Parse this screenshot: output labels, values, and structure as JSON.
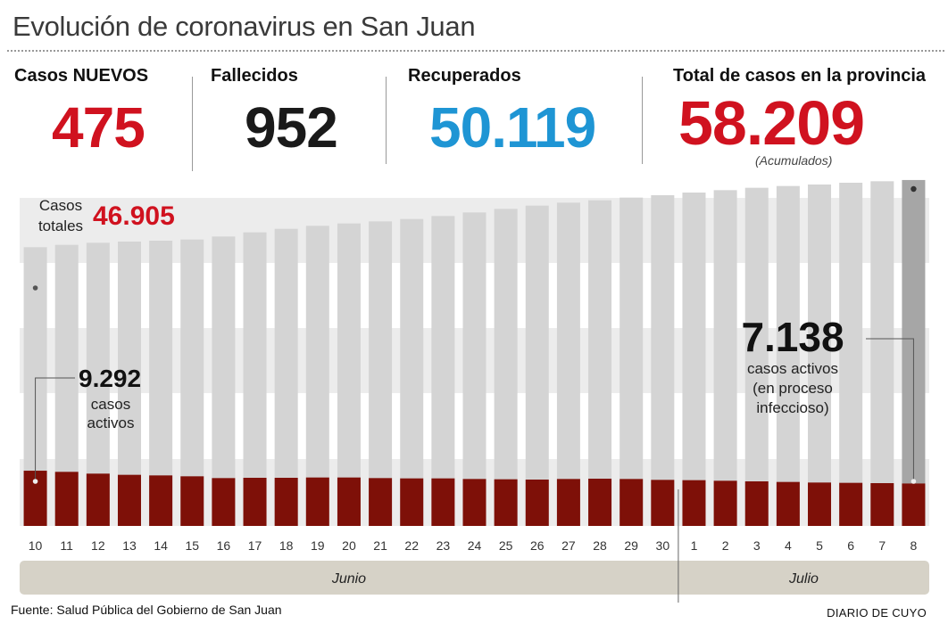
{
  "header": {
    "title": "Evolución de coronavirus en San Juan"
  },
  "stats": [
    {
      "key": "nuevos",
      "label": "Casos NUEVOS",
      "value": "475",
      "color": "#d0121f"
    },
    {
      "key": "fallecidos",
      "label": "Fallecidos",
      "value": "952",
      "color": "#1a1a1a"
    },
    {
      "key": "recuperados",
      "label": "Recuperados",
      "value": "50.119",
      "color": "#1e95d4"
    },
    {
      "key": "total",
      "label": "Total de casos en la provincia",
      "value": "58.209",
      "color": "#d0121f",
      "note": "(Acumulados)"
    }
  ],
  "annotations": {
    "casos_totales_label_1": "Casos",
    "casos_totales_label_2": "totales",
    "casos_totales_value": "46.905",
    "activos_start_value": "9.292",
    "activos_start_label_1": "casos",
    "activos_start_label_2": "activos",
    "activos_end_value": "7.138",
    "activos_end_label_1": "casos activos",
    "activos_end_label_2": "(en proceso",
    "activos_end_label_3": "infeccioso)"
  },
  "chart_data": {
    "type": "bar",
    "categories": [
      "10",
      "11",
      "12",
      "13",
      "14",
      "15",
      "16",
      "17",
      "18",
      "19",
      "20",
      "21",
      "22",
      "23",
      "24",
      "25",
      "26",
      "27",
      "28",
      "29",
      "30",
      "1",
      "2",
      "3",
      "4",
      "5",
      "6",
      "7",
      "8"
    ],
    "months": [
      {
        "label": "Junio",
        "from": 0,
        "to": 20
      },
      {
        "label": "Julio",
        "from": 21,
        "to": 28
      }
    ],
    "series": [
      {
        "key": "totales",
        "values": [
          46905,
          47300,
          47650,
          47850,
          48000,
          48200,
          48700,
          49400,
          50000,
          50500,
          50900,
          51250,
          51650,
          52150,
          52750,
          53350,
          53900,
          54400,
          54800,
          55250,
          55650,
          56100,
          56500,
          56900,
          57200,
          57450,
          57750,
          58000,
          58209
        ]
      },
      {
        "key": "activos",
        "values": [
          9292,
          9100,
          8800,
          8600,
          8500,
          8350,
          8050,
          8100,
          8100,
          8150,
          8150,
          8050,
          8000,
          8000,
          7900,
          7850,
          7800,
          7900,
          7950,
          7900,
          7750,
          7700,
          7600,
          7500,
          7400,
          7300,
          7250,
          7200,
          7138
        ]
      }
    ],
    "colors": {
      "totales": "#d4d4d4",
      "totales_highlight": "#a6a6a6",
      "activos": "#7e1008",
      "band": "#ececec",
      "month_bar": "#d6d2c7"
    },
    "ylim": [
      0,
      60000
    ],
    "xlabel": "",
    "ylabel": ""
  },
  "footer": {
    "source": "Fuente: Salud Pública del Gobierno de San Juan",
    "brand": "DIARIO DE CUYO"
  }
}
